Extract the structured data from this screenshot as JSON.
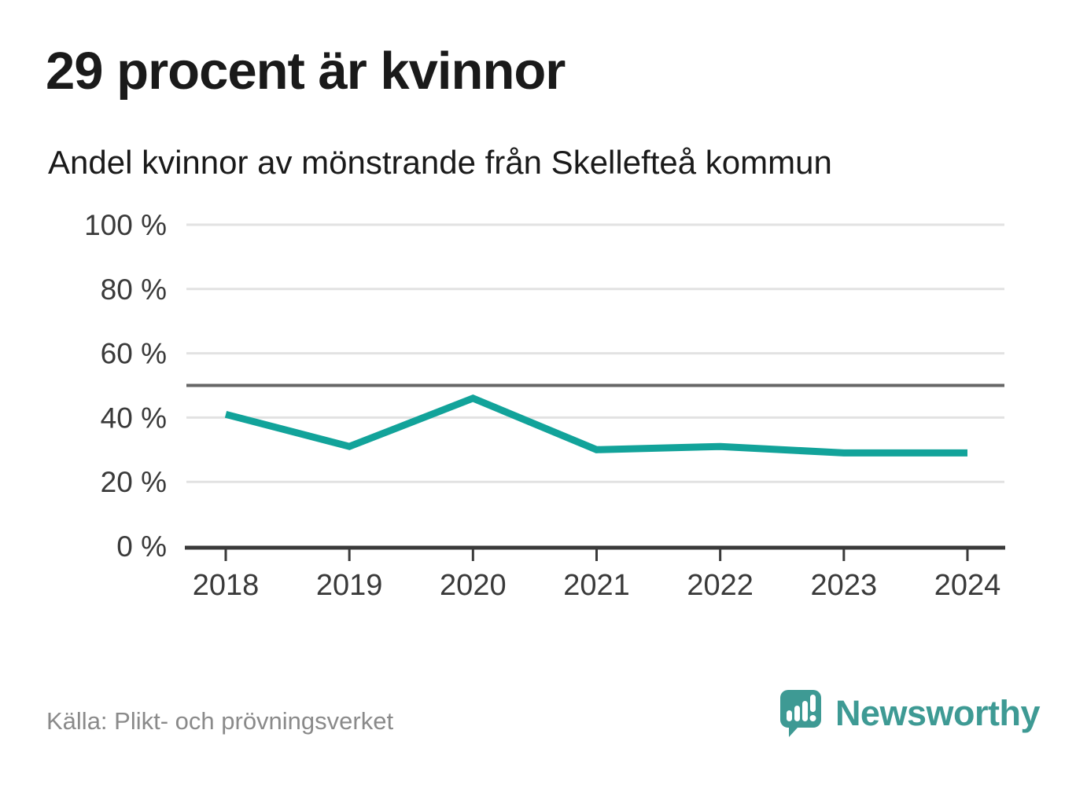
{
  "header": {
    "title": "29 procent är kvinnor",
    "subtitle": "Andel kvinnor av mönstrande från Skellefteå kommun"
  },
  "footer": {
    "source": "Källa: Plikt- och prövningsverket",
    "brand": "Newsworthy",
    "logo_icon": "speech-bubble-bar-chart-icon"
  },
  "colors": {
    "background": "#ffffff",
    "line": "#12a39a",
    "brand": "#3e9a94",
    "title": "#1a1a1a",
    "axis_label": "#3a3a3a",
    "gridline": "#e2e2e2",
    "reference_line": "#666666",
    "axis_line": "#3a3a3a",
    "source_text": "#8a8a8a",
    "logo_glyph": "#ffffff"
  },
  "chart_data": {
    "type": "line",
    "title": "29 procent är kvinnor",
    "subtitle": "Andel kvinnor av mönstrande från Skellefteå kommun",
    "categories": [
      "2018",
      "2019",
      "2020",
      "2021",
      "2022",
      "2023",
      "2024"
    ],
    "series": [
      {
        "name": "Andel kvinnor av mönstrande",
        "values": [
          41,
          31,
          46,
          30,
          31,
          29,
          29
        ]
      }
    ],
    "xlabel": "",
    "ylabel": "",
    "ylim": [
      0,
      100
    ],
    "y_ticks": [
      {
        "value": 0,
        "label": "0 %"
      },
      {
        "value": 20,
        "label": "20 %"
      },
      {
        "value": 40,
        "label": "40 %"
      },
      {
        "value": 60,
        "label": "60 %"
      },
      {
        "value": 80,
        "label": "80 %"
      },
      {
        "value": 100,
        "label": "100 %"
      }
    ],
    "reference_line": 50,
    "grid": "horizontal",
    "legend": "none",
    "line_color": "#12a39a"
  }
}
